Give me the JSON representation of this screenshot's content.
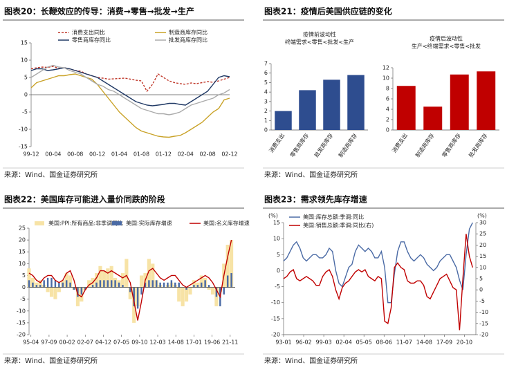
{
  "figures": [
    {
      "title": "图表20：长鞭效应的传导：消费→零售→批发→生产",
      "source": "来源：Wind、国金证券研究所"
    },
    {
      "title": "图表21：疫情后美国供应链的变化",
      "source": "来源：Wind、国金证券研究所"
    },
    {
      "title": "图表22：美国库存可能进入量价同跌的阶段",
      "source": "来源：Wind、国金证券研究所"
    },
    {
      "title": "图表23：需求领先库存增速",
      "source": "来源：Wind、国金证券研究所"
    }
  ],
  "chart_data": [
    {
      "type": "line",
      "categories": [
        "99-12",
        null,
        null,
        null,
        "00-04",
        null,
        null,
        null,
        "00-08",
        null,
        null,
        null,
        "00-12",
        null,
        null,
        null,
        "01-04",
        null,
        null,
        null,
        "01-08",
        null,
        null,
        null,
        "01-12",
        null,
        null,
        null,
        "02-04",
        null,
        null,
        null,
        "02-08",
        null,
        null,
        null,
        "02-12"
      ],
      "series": [
        {
          "name": "消费支出同比",
          "color": "#c0392b",
          "dash": true,
          "values": [
            7.5,
            7.8,
            8,
            7.9,
            8.2,
            7.6,
            7.8,
            7.5,
            7,
            6.8,
            6,
            5.5,
            5,
            4.8,
            4.5,
            4.6,
            4.7,
            4.8,
            4.5,
            4.2,
            4,
            1,
            3,
            6,
            5,
            4,
            3.5,
            3.2,
            3,
            3.4,
            3.2,
            3.5,
            3.8,
            3.6,
            4,
            4.5,
            5
          ]
        },
        {
          "name": "制造商库存同比",
          "color": "#c9a227",
          "values": [
            2,
            3.5,
            4,
            4.5,
            5,
            5.5,
            5.5,
            5.8,
            6,
            5.5,
            5,
            4.5,
            3,
            1,
            -1,
            -3,
            -5,
            -6.5,
            -8,
            -9.5,
            -10.5,
            -11,
            -11.5,
            -12,
            -12.2,
            -12.3,
            -12,
            -11.8,
            -11,
            -10,
            -9,
            -8,
            -6.5,
            -5,
            -4,
            -1.5,
            -1
          ]
        },
        {
          "name": "零售商库存同比",
          "color": "#1f3864",
          "values": [
            7,
            7.5,
            7.5,
            7,
            7.2,
            7.5,
            7.8,
            7.5,
            7,
            6.5,
            6,
            5.5,
            5,
            4,
            3,
            2,
            1,
            0,
            -1,
            -2,
            -2.5,
            -3,
            -3.2,
            -3,
            -2.8,
            -2.5,
            -2.5,
            -2.8,
            -3,
            -2,
            -1,
            0,
            1,
            3,
            5,
            5.5,
            5.2
          ]
        },
        {
          "name": "批发商库存同比",
          "color": "#aaaaaa",
          "values": [
            5,
            6,
            7,
            8,
            8.5,
            8,
            7.8,
            7,
            6.5,
            6,
            5,
            4,
            3,
            2.5,
            1.5,
            1,
            0,
            -1,
            -2,
            -3,
            -4,
            -4.5,
            -5,
            -5.5,
            -5.5,
            -5.8,
            -5.5,
            -5,
            -4,
            -3,
            -2.5,
            -2,
            -1.5,
            -1,
            0,
            0.5,
            1.5
          ]
        }
      ],
      "ylim": [
        -15,
        15
      ],
      "yticks": [
        -15,
        -10,
        -5,
        0,
        5,
        10,
        15
      ],
      "zero_line": true,
      "legend": "top"
    },
    {
      "type": "bar",
      "subtitle": [
        "疫情前波动性",
        "终端需求<零售<批发<生产"
      ],
      "categories": [
        "消费支出",
        "零售商库存",
        "批发商库存",
        "制造商库存"
      ],
      "values": [
        2,
        4.2,
        5.3,
        5.8
      ],
      "color": "#2e4d8f",
      "ylim": [
        0,
        7
      ],
      "yticks": [
        0,
        1,
        2,
        3,
        4,
        5,
        6,
        7
      ]
    },
    {
      "type": "bar",
      "subtitle": [
        "疫情后波动性",
        "生产<终端需求<零售<批发"
      ],
      "categories": [
        "消费支出",
        "制造商库存",
        "零售商库存",
        "批发商库存"
      ],
      "values": [
        8.5,
        4.5,
        10.7,
        11.3
      ],
      "color": "#c00000",
      "ylim": [
        0,
        12
      ],
      "yticks": [
        0,
        2,
        4,
        6,
        8,
        10,
        12
      ]
    },
    {
      "type": "combo",
      "x": [
        1995,
        1995.5,
        1996,
        1996.5,
        1997,
        1997.5,
        1998,
        1998.5,
        1999,
        1999.5,
        2000,
        2000.5,
        2001,
        2001.5,
        2002,
        2002.5,
        2003,
        2003.5,
        2004,
        2004.5,
        2005,
        2005.5,
        2006,
        2006.5,
        2007,
        2007.5,
        2008,
        2008.5,
        2009,
        2009.5,
        2010,
        2010.5,
        2011,
        2011.5,
        2012,
        2012.5,
        2013,
        2013.5,
        2014,
        2014.5,
        2015,
        2015.5,
        2016,
        2016.5,
        2017,
        2017.5,
        2018,
        2018.5,
        2019,
        2019.5,
        2020,
        2020.5,
        2021,
        2021.5,
        2022
      ],
      "series": [
        {
          "name": "美国:PPI:所有商品:非季调同比",
          "type": "bar",
          "color": "#f7e3a6",
          "values": [
            8,
            4,
            2,
            3,
            1,
            -2,
            -4,
            -5,
            -2,
            3,
            6,
            5,
            -1,
            -8,
            -6,
            -1,
            3,
            4,
            6,
            9,
            7,
            8,
            9,
            4,
            3,
            6,
            12,
            -5,
            -15,
            -8,
            5,
            6,
            12,
            10,
            3,
            1,
            0,
            1,
            2,
            1,
            -6,
            -8,
            -6,
            -3,
            3,
            2,
            5,
            4,
            -1,
            -3,
            -8,
            -2,
            10,
            18,
            20
          ]
        },
        {
          "name": "美国:实际库存增速",
          "type": "bar",
          "color": "#4a6aa5",
          "values": [
            3,
            2,
            1,
            1,
            3,
            4,
            4,
            3,
            2,
            2,
            3,
            2,
            -1,
            -4,
            -3,
            -1,
            0,
            1,
            2,
            3,
            3,
            3,
            3,
            3,
            2,
            1,
            0,
            -2,
            -8,
            -9,
            -3,
            2,
            3,
            3,
            3,
            2,
            2,
            2,
            3,
            2,
            2,
            0,
            -1,
            0,
            1,
            1,
            2,
            3,
            1,
            0,
            -4,
            -8,
            -3,
            5,
            6
          ]
        },
        {
          "name": "美国:名义库存增速",
          "type": "line",
          "color": "#c00000",
          "values": [
            6,
            5,
            3,
            2,
            4,
            5,
            5,
            3,
            2,
            3,
            6,
            7,
            3,
            -3,
            -4,
            -1,
            1,
            2,
            4,
            7,
            7,
            6,
            7,
            6,
            5,
            4,
            5,
            2,
            -6,
            -14,
            -6,
            3,
            7,
            8,
            6,
            4,
            3,
            4,
            5,
            5,
            3,
            1,
            0,
            1,
            2,
            3,
            4,
            5,
            4,
            2,
            -1,
            -4,
            5,
            13,
            20
          ]
        }
      ],
      "xlim": [
        1995,
        2022.5
      ],
      "xticks": [
        {
          "value": 1995.25,
          "label": "95-04"
        },
        {
          "value": 1997.667,
          "label": "97-09"
        },
        {
          "value": 2000.083,
          "label": "00-02"
        },
        {
          "value": 2002.5,
          "label": "02-07"
        },
        {
          "value": 2004.917,
          "label": "04-12"
        },
        {
          "value": 2007.333,
          "label": "07-05"
        },
        {
          "value": 2009.75,
          "label": "09-10"
        },
        {
          "value": 2012.167,
          "label": "12-03"
        },
        {
          "value": 2014.583,
          "label": "14-08"
        },
        {
          "value": 2017.0,
          "label": "17-01"
        },
        {
          "value": 2019.417,
          "label": "19-06"
        },
        {
          "value": 2021.833,
          "label": "21-11"
        }
      ],
      "ylim": [
        -20,
        25
      ],
      "yticks": [
        -20,
        -15,
        -10,
        -5,
        0,
        5,
        10,
        15,
        20,
        25
      ],
      "zero_line": true,
      "legend": "top"
    },
    {
      "type": "combo",
      "y_label": "(%)",
      "y2_label": "(%)",
      "x": [
        1993,
        1993.5,
        1994,
        1994.5,
        1995,
        1995.5,
        1996,
        1996.5,
        1997,
        1997.5,
        1998,
        1998.5,
        1999,
        1999.5,
        2000,
        2000.5,
        2001,
        2001.5,
        2002,
        2002.5,
        2003,
        2003.5,
        2004,
        2004.5,
        2005,
        2005.5,
        2006,
        2006.5,
        2007,
        2007.5,
        2008,
        2008.5,
        2009,
        2009.5,
        2010,
        2010.5,
        2011,
        2011.5,
        2012,
        2012.5,
        2013,
        2013.5,
        2014,
        2014.5,
        2015,
        2015.5,
        2016,
        2016.5,
        2017,
        2017.5,
        2018,
        2018.5,
        2019,
        2019.5,
        2020,
        2020.5,
        2021,
        2021.5,
        2022
      ],
      "series": [
        {
          "name": "美国:库存总额:季调:同比",
          "type": "line",
          "color": "#4a6aa5",
          "values": [
            3,
            4,
            6,
            8,
            9,
            7,
            4,
            3,
            4,
            5,
            5,
            4,
            4,
            5,
            7,
            6,
            0,
            -4,
            -5,
            -2,
            1,
            2,
            6,
            8,
            7,
            6,
            7,
            6,
            4,
            4,
            6,
            1,
            -10,
            -10,
            -1,
            6,
            9,
            9,
            6,
            4,
            3,
            4,
            5,
            4,
            2,
            1,
            0,
            1,
            3,
            4,
            5,
            5,
            3,
            1,
            -3,
            -6,
            5,
            13,
            15
          ]
        },
        {
          "name": "美国:销售总额:季调:同比(右)",
          "type": "line",
          "axis": "y2",
          "color": "#c00000",
          "values": [
            5,
            6,
            8,
            9,
            5,
            4,
            5,
            6,
            5,
            4,
            2,
            2,
            6,
            8,
            9,
            6,
            0,
            -4,
            1,
            3,
            4,
            6,
            8,
            9,
            8,
            9,
            6,
            5,
            4,
            6,
            5,
            -14,
            -15,
            -8,
            10,
            12,
            10,
            9,
            4,
            3,
            3,
            4,
            4,
            2,
            -3,
            -4,
            -1,
            2,
            5,
            6,
            7,
            4,
            1,
            0,
            -18,
            5,
            25,
            15,
            10
          ]
        }
      ],
      "xlim": [
        1993,
        2022.5
      ],
      "xticks": [
        {
          "value": 1993.0,
          "label": "93-01"
        },
        {
          "value": 1996.083,
          "label": "96-02"
        },
        {
          "value": 1999.167,
          "label": "99-03"
        },
        {
          "value": 2002.25,
          "label": "02-04"
        },
        {
          "value": 2005.333,
          "label": "05-05"
        },
        {
          "value": 2008.417,
          "label": "08-06"
        },
        {
          "value": 2011.5,
          "label": "11-07"
        },
        {
          "value": 2014.583,
          "label": "14-08"
        },
        {
          "value": 2017.667,
          "label": "17-09"
        },
        {
          "value": 2020.75,
          "label": "20-10"
        }
      ],
      "ylim": [
        -20,
        15
      ],
      "yticks": [
        -20,
        -15,
        -10,
        -5,
        0,
        5,
        10,
        15
      ],
      "y2lim": [
        -20,
        30
      ],
      "y2ticks": [
        -20,
        -15,
        -10,
        -5,
        0,
        5,
        10,
        15,
        20,
        25,
        30
      ],
      "zero_line": false,
      "legend": "top-left"
    }
  ]
}
